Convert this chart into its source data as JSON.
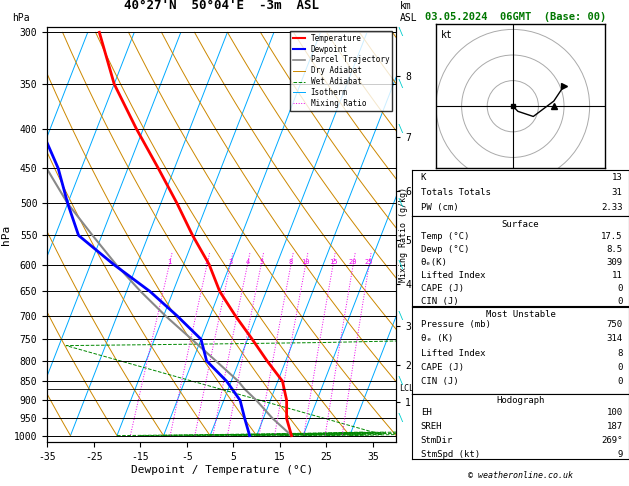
{
  "title_left": "40°27'N  50°04'E  -3m  ASL",
  "title_right": "03.05.2024  06GMT  (Base: 00)",
  "xlabel": "Dewpoint / Temperature (°C)",
  "ylabel_left": "hPa",
  "ylabel_right_top": "km\nASL",
  "ylabel_mix": "Mixing Ratio (g/kg)",
  "pressure_levels": [
    300,
    350,
    400,
    450,
    500,
    550,
    600,
    650,
    700,
    750,
    800,
    850,
    900,
    950,
    1000
  ],
  "temp_color": "#ff0000",
  "dewp_color": "#0000ff",
  "parcel_color": "#888888",
  "dry_adiabat_color": "#cc8800",
  "wet_adiabat_color": "#008800",
  "isotherm_color": "#00aaff",
  "mixing_ratio_color": "#ee00ee",
  "wind_barb_color": "#00cccc",
  "background": "#ffffff",
  "lcl_pressure": 870,
  "km_ticks": [
    1,
    2,
    3,
    4,
    5,
    6,
    7,
    8
  ],
  "km_pressures": [
    905,
    810,
    720,
    635,
    558,
    482,
    410,
    342
  ],
  "mixing_ratio_values": [
    1,
    2,
    3,
    4,
    5,
    8,
    10,
    15,
    20,
    25
  ],
  "temp_profile": {
    "pressure": [
      1000,
      950,
      900,
      850,
      800,
      750,
      700,
      650,
      600,
      550,
      500,
      450,
      400,
      350,
      300
    ],
    "temperature": [
      17.5,
      15.0,
      13.5,
      11.0,
      6.0,
      1.0,
      -4.5,
      -10.0,
      -14.5,
      -20.5,
      -26.5,
      -33.5,
      -41.5,
      -50.0,
      -57.5
    ]
  },
  "dewp_profile": {
    "pressure": [
      1000,
      950,
      900,
      850,
      800,
      750,
      700,
      650,
      600,
      550,
      500,
      450,
      400,
      350,
      300
    ],
    "dewpoint": [
      8.5,
      6.0,
      3.5,
      -1.0,
      -7.0,
      -10.0,
      -17.0,
      -25.0,
      -35.0,
      -45.0,
      -50.0,
      -55.0,
      -62.0,
      -70.0,
      -80.0
    ]
  },
  "parcel_profile": {
    "pressure": [
      1000,
      950,
      900,
      870,
      850,
      800,
      750,
      700,
      650,
      600,
      550,
      500,
      450,
      400,
      350,
      300
    ],
    "temperature": [
      17.5,
      12.0,
      7.0,
      3.5,
      1.5,
      -5.0,
      -12.0,
      -19.5,
      -27.0,
      -34.5,
      -42.0,
      -50.0,
      -57.5,
      -65.0,
      -73.0,
      -81.0
    ]
  },
  "copyright": "© weatheronline.co.uk",
  "xlim": [
    -35,
    40
  ],
  "pmin": 300,
  "pmax": 1000
}
